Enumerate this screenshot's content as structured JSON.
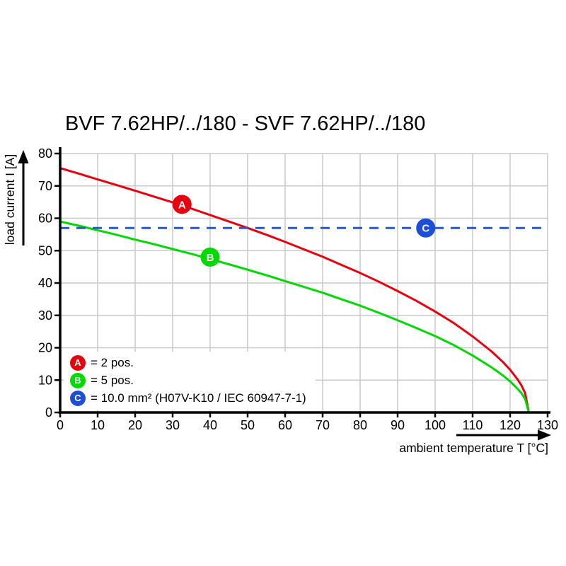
{
  "title": "BVF 7.62HP/../180 - SVF 7.62HP/../180",
  "chart_data": {
    "type": "line",
    "title": "BVF 7.62HP/../180 - SVF 7.62HP/../180",
    "xlabel": "ambient temperature T [°C]",
    "ylabel": "load current I [A]",
    "xlim": [
      0,
      130
    ],
    "ylim": [
      0,
      80
    ],
    "xticks": [
      0,
      10,
      20,
      30,
      40,
      50,
      60,
      70,
      80,
      90,
      100,
      110,
      120,
      130
    ],
    "yticks": [
      0,
      10,
      20,
      30,
      40,
      50,
      60,
      70,
      80
    ],
    "grid": true,
    "grid_color": "#c9c9c9",
    "legend_position": "bottom-left",
    "series": [
      {
        "id": "a",
        "name": "A = 2 pos.",
        "color": "#e8000f",
        "style": "solid",
        "points": [
          [
            0,
            75.5
          ],
          [
            5,
            73.8
          ],
          [
            10,
            72
          ],
          [
            15,
            70.3
          ],
          [
            20,
            68.5
          ],
          [
            25,
            66.7
          ],
          [
            30,
            64.9
          ],
          [
            35,
            63
          ],
          [
            40,
            61
          ],
          [
            45,
            59
          ],
          [
            50,
            57
          ],
          [
            55,
            54.9
          ],
          [
            60,
            52.7
          ],
          [
            65,
            50.4
          ],
          [
            70,
            48.1
          ],
          [
            75,
            45.6
          ],
          [
            80,
            43.1
          ],
          [
            85,
            40.4
          ],
          [
            90,
            37.5
          ],
          [
            95,
            34.5
          ],
          [
            100,
            31.2
          ],
          [
            105,
            27.6
          ],
          [
            110,
            23.5
          ],
          [
            115,
            18.9
          ],
          [
            118,
            15.7
          ],
          [
            120,
            13.2
          ],
          [
            122,
            10.2
          ],
          [
            123,
            8.4
          ],
          [
            124,
            6
          ],
          [
            125,
            0
          ]
        ]
      },
      {
        "id": "b",
        "name": "B = 5 pos.",
        "color": "#00d900",
        "style": "solid",
        "points": [
          [
            0,
            59
          ],
          [
            5,
            57.7
          ],
          [
            10,
            56.3
          ],
          [
            15,
            54.9
          ],
          [
            20,
            53.4
          ],
          [
            25,
            52
          ],
          [
            30,
            50.5
          ],
          [
            35,
            49
          ],
          [
            40,
            47.4
          ],
          [
            45,
            45.8
          ],
          [
            50,
            44.1
          ],
          [
            55,
            42.4
          ],
          [
            60,
            40.6
          ],
          [
            65,
            38.8
          ],
          [
            70,
            37
          ],
          [
            75,
            35
          ],
          [
            80,
            33
          ],
          [
            85,
            30.8
          ],
          [
            90,
            28.5
          ],
          [
            95,
            26.1
          ],
          [
            100,
            23.6
          ],
          [
            105,
            20.8
          ],
          [
            110,
            17.6
          ],
          [
            115,
            14
          ],
          [
            118,
            11.5
          ],
          [
            120,
            9.6
          ],
          [
            122,
            7.3
          ],
          [
            123,
            6
          ],
          [
            124,
            4.2
          ],
          [
            125,
            0
          ]
        ]
      },
      {
        "id": "c",
        "name": "C = 10.0 mm² (H07V-K10 / IEC 60947-7-1)",
        "color": "#2257df",
        "style": "dashed",
        "points": [
          [
            0,
            57
          ],
          [
            130,
            57
          ]
        ]
      }
    ],
    "markers": [
      {
        "label": "A",
        "x": 32.5,
        "y": 64.3,
        "color": "#e8000f"
      },
      {
        "label": "B",
        "x": 40,
        "y": 48,
        "color": "#00d900"
      },
      {
        "label": "C",
        "x": 97.5,
        "y": 57,
        "color": "#1c4fd6"
      }
    ],
    "legend": [
      {
        "badge": "A",
        "text": "= 2 pos.",
        "color": "#e8000f"
      },
      {
        "badge": "B",
        "text": "= 5 pos.",
        "color": "#00d900"
      },
      {
        "badge": "C",
        "text": "= 10.0 mm² (H07V-K10 / IEC 60947-7-1)",
        "color": "#1c4fd6"
      }
    ]
  }
}
